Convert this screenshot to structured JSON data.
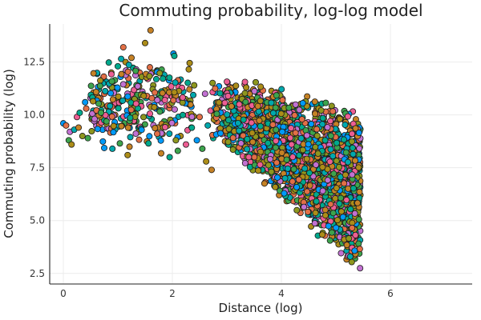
{
  "chart_data": {
    "type": "scatter",
    "title": "Commuting probability, log-log model",
    "xlabel": "Distance (log)",
    "ylabel": "Commuting probability (log)",
    "xlim": [
      -0.25,
      7.5
    ],
    "ylim": [
      2.0,
      14.3
    ],
    "x_ticks": [
      0,
      2,
      4,
      6
    ],
    "y_ticks": [
      2.5,
      5.0,
      7.5,
      10.0,
      12.5
    ],
    "x_tick_labels": [
      "0",
      "2",
      "4",
      "6"
    ],
    "y_tick_labels": [
      "2.5",
      "5.0",
      "7.5",
      "10.0",
      "12.5"
    ],
    "grid": true,
    "legend": "none",
    "marker_colors": [
      "#009AF9",
      "#E26F46",
      "#3DA44D",
      "#C271D2",
      "#AC8D18",
      "#00A9AD",
      "#ED5E93",
      "#C68225",
      "#00A98D",
      "#8E971E"
    ],
    "points": [
      [
        0.0,
        9.6
      ],
      [
        0.05,
        9.5
      ],
      [
        0.1,
        8.8
      ],
      [
        0.12,
        9.2
      ],
      [
        0.15,
        8.6
      ],
      [
        0.2,
        9.3
      ],
      [
        0.25,
        9.9
      ],
      [
        0.28,
        9.4
      ],
      [
        0.3,
        10.1
      ],
      [
        0.35,
        9.0
      ],
      [
        0.4,
        10.6
      ],
      [
        0.42,
        10.3
      ],
      [
        0.45,
        8.9
      ],
      [
        0.5,
        10.8
      ],
      [
        0.52,
        9.8
      ],
      [
        0.55,
        10.2
      ],
      [
        0.6,
        9.6
      ],
      [
        0.62,
        10.9
      ],
      [
        0.65,
        11.2
      ],
      [
        0.7,
        10.5
      ],
      [
        0.72,
        9.3
      ],
      [
        0.75,
        11.0
      ],
      [
        0.8,
        10.4
      ],
      [
        0.85,
        11.4
      ],
      [
        0.88,
        12.0
      ],
      [
        0.9,
        8.4
      ],
      [
        0.92,
        11.6
      ],
      [
        0.95,
        10.0
      ],
      [
        1.0,
        12.3
      ],
      [
        1.02,
        10.7
      ],
      [
        1.05,
        11.8
      ],
      [
        1.1,
        13.2
      ],
      [
        1.12,
        9.6
      ],
      [
        1.15,
        12.1
      ],
      [
        1.18,
        8.1
      ],
      [
        1.2,
        11.5
      ],
      [
        1.22,
        10.9
      ],
      [
        1.25,
        12.7
      ],
      [
        1.3,
        10.2
      ],
      [
        1.35,
        11.3
      ],
      [
        1.38,
        9.4
      ],
      [
        1.4,
        12.0
      ],
      [
        1.42,
        10.6
      ],
      [
        1.45,
        11.1
      ],
      [
        1.5,
        13.4
      ],
      [
        1.52,
        10.8
      ],
      [
        1.55,
        11.7
      ],
      [
        1.6,
        14.0
      ],
      [
        1.62,
        9.8
      ],
      [
        1.65,
        11.4
      ],
      [
        1.7,
        10.3
      ],
      [
        1.72,
        12.1
      ],
      [
        1.75,
        11.0
      ],
      [
        1.8,
        10.6
      ],
      [
        1.82,
        9.1
      ],
      [
        1.85,
        11.9
      ],
      [
        1.9,
        10.4
      ],
      [
        1.92,
        11.2
      ],
      [
        1.95,
        8.0
      ],
      [
        2.0,
        10.9
      ],
      [
        2.02,
        12.9
      ],
      [
        2.05,
        9.6
      ],
      [
        2.1,
        8.3
      ],
      [
        2.12,
        10.7
      ],
      [
        2.15,
        9.0
      ],
      [
        2.2,
        11.1
      ],
      [
        2.25,
        8.6
      ],
      [
        2.3,
        10.5
      ],
      [
        2.35,
        9.4
      ],
      [
        2.4,
        11.4
      ],
      [
        2.45,
        8.8
      ],
      [
        2.5,
        9.9
      ],
      [
        2.55,
        8.4
      ],
      [
        2.6,
        11.0
      ],
      [
        2.62,
        7.8
      ],
      [
        2.65,
        9.5
      ],
      [
        2.7,
        10.2
      ],
      [
        2.72,
        7.4
      ],
      [
        2.75,
        8.9
      ],
      [
        2.8,
        9.7
      ]
    ]
  }
}
